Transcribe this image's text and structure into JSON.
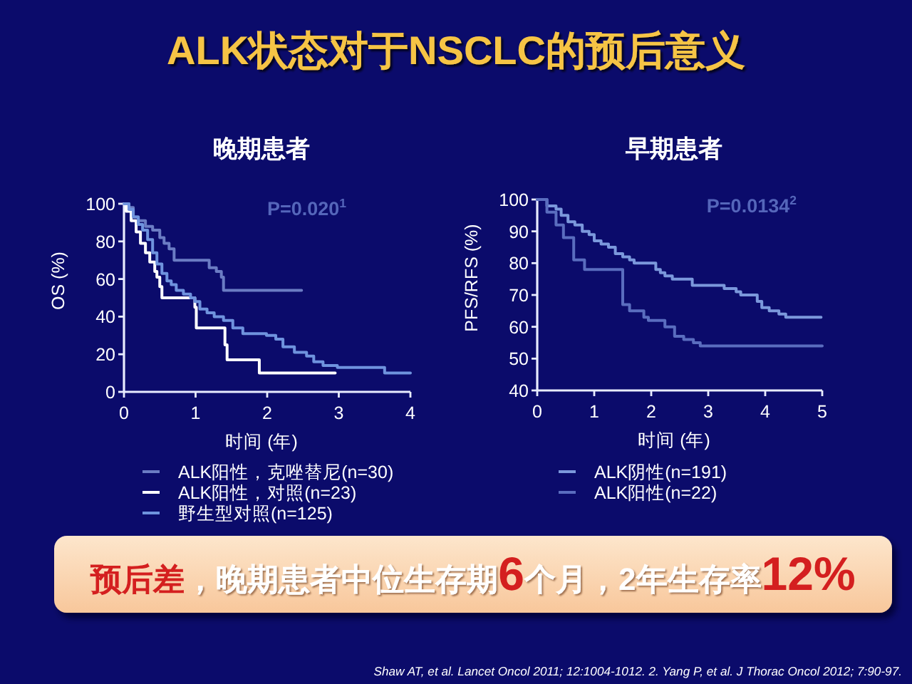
{
  "chart_data": [
    {
      "type": "other",
      "title": "ALK状态对于NSCLC的预后意义"
    },
    {
      "type": "step",
      "title": "晚期患者",
      "xlabel": "时间 (年)",
      "ylabel": "OS (%)",
      "xlim": [
        0,
        4
      ],
      "xticks": [
        0,
        1,
        2,
        3,
        4
      ],
      "ylim": [
        0,
        100
      ],
      "yticks": [
        0,
        20,
        40,
        60,
        80,
        100
      ],
      "legend": "bottom",
      "annotations": [
        "P=0.020$^{1}$"
      ],
      "series": [
        {
          "name": "ALK阳性，克唑替尼(n=30)",
          "color": "#6b7cc4",
          "x": [
            0,
            0.07,
            0.13,
            0.2,
            0.3,
            0.4,
            0.5,
            0.56,
            0.63,
            0.7,
            1.19,
            1.29,
            1.36,
            1.39,
            2.48
          ],
          "values": [
            100,
            98,
            93,
            91,
            88,
            86,
            82,
            79,
            76,
            70,
            66,
            64,
            61,
            54,
            54
          ]
        },
        {
          "name": "ALK阳性，对照(n=23)",
          "color": "#ffffff",
          "x": [
            0,
            0.03,
            0.1,
            0.17,
            0.23,
            0.3,
            0.36,
            0.43,
            0.46,
            0.5,
            0.53,
            0.99,
            1.01,
            1.41,
            1.44,
            1.89,
            2.95
          ],
          "values": [
            100,
            96,
            91,
            85,
            79,
            74,
            69,
            64,
            61,
            56,
            50,
            45,
            34,
            25,
            17,
            10,
            10
          ]
        },
        {
          "name": "野生型对照(n=125)",
          "color": "#6f93de",
          "x": [
            0,
            0.07,
            0.13,
            0.2,
            0.26,
            0.33,
            0.4,
            0.46,
            0.53,
            0.6,
            0.66,
            0.73,
            0.83,
            0.93,
            0.99,
            1.06,
            1.16,
            1.26,
            1.39,
            1.52,
            1.66,
            1.99,
            2.12,
            2.22,
            2.38,
            2.55,
            2.65,
            2.78,
            2.98,
            3.64,
            4.0
          ],
          "values": [
            100,
            97,
            93,
            89,
            86,
            81,
            74,
            68,
            63,
            59,
            57,
            54,
            52,
            50,
            48,
            44,
            42,
            40,
            38,
            34,
            31,
            30,
            28,
            24,
            21,
            19,
            16,
            14,
            13,
            10,
            10
          ]
        }
      ]
    },
    {
      "type": "step",
      "title": "早期患者",
      "xlabel": "时间 (年)",
      "ylabel": "PFS/RFS (%)",
      "xlim": [
        0,
        5
      ],
      "xticks": [
        0,
        1,
        2,
        3,
        4,
        5
      ],
      "ylim": [
        40,
        100
      ],
      "yticks": [
        40,
        50,
        60,
        70,
        80,
        90,
        100
      ],
      "legend": "bottom",
      "annotations": [
        "P=0.0134$^{2}$"
      ],
      "series": [
        {
          "name": "ALK阴性(n=191)",
          "color": "#7b98dc",
          "x": [
            0,
            0.17,
            0.33,
            0.42,
            0.54,
            0.66,
            0.79,
            0.91,
            1.0,
            1.12,
            1.25,
            1.37,
            1.5,
            1.62,
            1.7,
            2.08,
            2.16,
            2.24,
            2.37,
            2.72,
            3.28,
            3.49,
            3.57,
            3.86,
            3.94,
            4.07,
            4.24,
            4.36,
            4.98
          ],
          "values": [
            100,
            98,
            97,
            95,
            93,
            92,
            90,
            89,
            87,
            86,
            85,
            83,
            82,
            81,
            80,
            78,
            77,
            76,
            75,
            73,
            72,
            71,
            70,
            68,
            66,
            65,
            64,
            63,
            63
          ]
        },
        {
          "name": "ALK阳性(n=22)",
          "color": "#5a6dbf",
          "x": [
            0,
            0.17,
            0.33,
            0.46,
            0.64,
            0.83,
            1.5,
            1.62,
            1.87,
            1.95,
            2.24,
            2.41,
            2.57,
            2.74,
            2.86,
            5.0
          ],
          "values": [
            100,
            96,
            92,
            88,
            81,
            78,
            67,
            65,
            63,
            62,
            60,
            57,
            56,
            55,
            54,
            54
          ]
        }
      ]
    },
    {
      "type": "other",
      "annotations": [
        "预后差",
        "，晚期患者中位生存期",
        "6",
        "个月，2年生存率",
        "12%"
      ]
    },
    {
      "type": "other",
      "annotations": [
        "Shaw AT, et al. Lancet Oncol 2011; 12:1004-1012. 2. Yang P, et al. J Thorac Oncol 2012; 7:90-97."
      ]
    }
  ]
}
